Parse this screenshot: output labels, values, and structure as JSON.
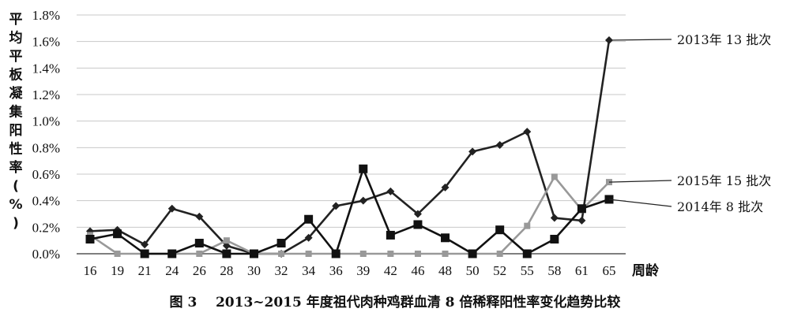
{
  "chart_data": {
    "type": "line",
    "categories": [
      "16",
      "19",
      "21",
      "24",
      "26",
      "28",
      "30",
      "32",
      "34",
      "36",
      "39",
      "42",
      "46",
      "48",
      "50",
      "52",
      "55",
      "58",
      "61",
      "65"
    ],
    "ylabel": "平均平板凝集阳性率(%)",
    "xlabel": "周龄",
    "ylim": [
      0,
      1.8
    ],
    "yticks": [
      "0.0%",
      "0.2%",
      "0.4%",
      "0.6%",
      "0.8%",
      "1.0%",
      "1.2%",
      "1.4%",
      "1.6%",
      "1.8%"
    ],
    "grid": true,
    "caption": "图 3    2013~2015 年度祖代肉种鸡群血清 8 倍稀释阳性率变化趋势比较",
    "series": [
      {
        "name": "2013年 13 批次",
        "color": "#222222",
        "marker": "diamond",
        "values": [
          0.17,
          0.18,
          0.07,
          0.34,
          0.28,
          0.06,
          0.0,
          0.0,
          0.12,
          0.36,
          0.4,
          0.47,
          0.3,
          0.5,
          0.77,
          0.82,
          0.92,
          0.27,
          0.25,
          1.61
        ]
      },
      {
        "name": "2015年 15 批次",
        "color": "#999999",
        "marker": "square",
        "values": [
          0.14,
          0.0,
          0.0,
          0.0,
          0.0,
          0.1,
          0.0,
          0.0,
          0.0,
          0.0,
          0.0,
          0.0,
          0.0,
          0.0,
          0.0,
          0.0,
          0.21,
          0.58,
          0.33,
          0.54
        ]
      },
      {
        "name": "2014年 8 批次",
        "color": "#111111",
        "marker": "square",
        "values": [
          0.11,
          0.15,
          0.0,
          0.0,
          0.08,
          0.0,
          0.0,
          0.08,
          0.26,
          0.0,
          0.64,
          0.14,
          0.22,
          0.12,
          0.0,
          0.18,
          0.0,
          0.11,
          0.34,
          0.41
        ]
      }
    ]
  }
}
